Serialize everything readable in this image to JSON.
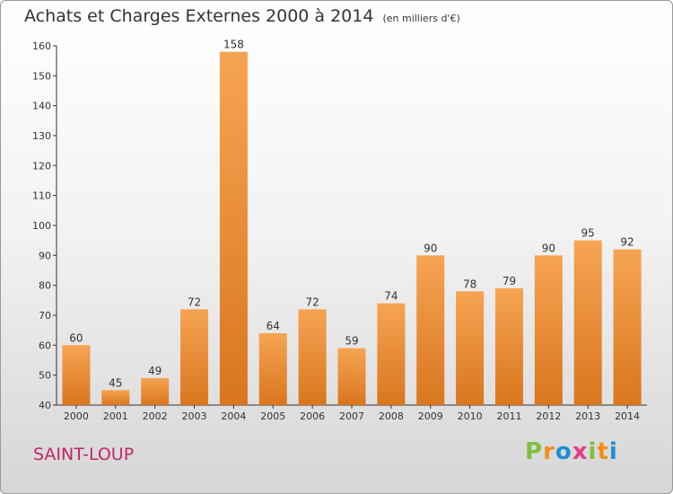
{
  "header": {
    "title": "Achats et Charges Externes 2000 à 2014",
    "subtitle": "(en milliers d'€)"
  },
  "footer": {
    "commune": "SAINT-LOUP",
    "logo_text": "Proxiti"
  },
  "colors": {
    "bar_top": "#f6a453",
    "bar_bottom": "#d9761e",
    "logo": [
      "#7cc242",
      "#f28e1c",
      "#1c8fd6",
      "#e63c8c",
      "#7cc242",
      "#f28e1c",
      "#1c8fd6"
    ]
  },
  "chart_data": {
    "type": "bar",
    "title": "Achats et Charges Externes 2000 à 2014",
    "subtitle": "(en milliers d'€)",
    "categories": [
      "2000",
      "2001",
      "2002",
      "2003",
      "2004",
      "2005",
      "2006",
      "2007",
      "2008",
      "2009",
      "2010",
      "2011",
      "2012",
      "2013",
      "2014"
    ],
    "values": [
      60,
      45,
      49,
      72,
      158,
      64,
      72,
      59,
      74,
      90,
      78,
      79,
      90,
      95,
      92
    ],
    "ylim": [
      40,
      160
    ],
    "yticks": [
      40,
      50,
      60,
      70,
      80,
      90,
      100,
      110,
      120,
      130,
      140,
      150,
      160
    ],
    "grid": false,
    "legend": "none"
  }
}
